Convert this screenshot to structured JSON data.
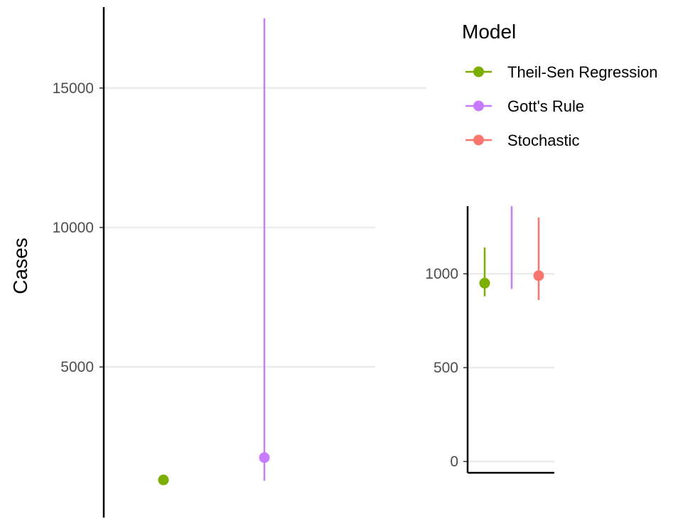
{
  "chart_data": [
    {
      "type": "scatter",
      "subtype": "pointrange",
      "ylabel": "Cases",
      "ylim": [
        -400,
        17900
      ],
      "yticks": [
        5000,
        10000,
        15000
      ],
      "grid": true,
      "series": [
        {
          "name": "Theil-Sen Regression",
          "color": "#7CAE00",
          "x": 1,
          "y": 950,
          "ymin": 880,
          "ymax": 1140
        },
        {
          "name": "Gott's Rule",
          "color": "#C77CFF",
          "x": 2,
          "y": 1750,
          "ymin": 920,
          "ymax": 17500
        },
        {
          "name": "Stochastic",
          "color": "#F8766D",
          "x": 3,
          "y": 990,
          "ymin": 860,
          "ymax": 1300
        }
      ]
    },
    {
      "type": "scatter",
      "subtype": "pointrange",
      "ylim": [
        -60,
        1360
      ],
      "yticks": [
        0,
        500,
        1000
      ],
      "grid": true,
      "series": [
        {
          "name": "Theil-Sen Regression",
          "color": "#7CAE00",
          "x": 1,
          "y": 950,
          "ymin": 880,
          "ymax": 1140
        },
        {
          "name": "Gott's Rule",
          "color": "#C77CFF",
          "x": 2,
          "y": 1750,
          "ymin": 920,
          "ymax": 17500
        },
        {
          "name": "Stochastic",
          "color": "#F8766D",
          "x": 3,
          "y": 990,
          "ymin": 860,
          "ymax": 1300
        }
      ]
    }
  ],
  "legend": {
    "title": "Model",
    "position": "top-right",
    "items": [
      {
        "label": "Theil-Sen Regression",
        "color": "#7CAE00"
      },
      {
        "label": "Gott's Rule",
        "color": "#C77CFF"
      },
      {
        "label": "Stochastic",
        "color": "#F8766D"
      }
    ]
  }
}
